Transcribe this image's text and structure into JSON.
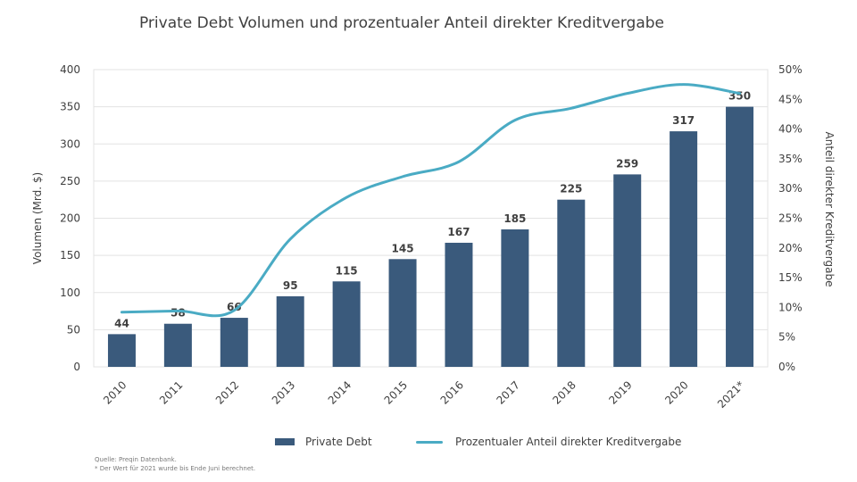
{
  "chart_data": {
    "type": "bar",
    "title": "Private Debt Volumen und prozentualer Anteil direkter Kreditvergabe",
    "categories": [
      "2010",
      "2011",
      "2012",
      "2013",
      "2014",
      "2015",
      "2016",
      "2017",
      "2018",
      "2019",
      "2020",
      "2021*"
    ],
    "series": [
      {
        "name": "Private Debt",
        "type": "bar",
        "axis": "left",
        "color": "#3a5a7c",
        "values": [
          44,
          58,
          66,
          95,
          115,
          145,
          167,
          185,
          225,
          259,
          317,
          350
        ],
        "labels": [
          "44",
          "58",
          "66",
          "95",
          "115",
          "145",
          "167",
          "185",
          "225",
          "259",
          "317",
          "350"
        ]
      },
      {
        "name": "Prozentualer Anteil direkter Kreditvergabe",
        "type": "line",
        "axis": "right",
        "color": "#4aabc4",
        "values": [
          9.2,
          9.4,
          9.5,
          21.5,
          28.5,
          32.0,
          34.5,
          41.5,
          43.5,
          46.0,
          47.5,
          46.0
        ]
      }
    ],
    "ylabel": "Volumen (Mrd. $)",
    "ylabel_right": "Anteil direkter Kreditvergabe",
    "ylim": [
      0,
      400
    ],
    "ylim_right": [
      0,
      50
    ],
    "yticks": [
      "0",
      "50",
      "100",
      "150",
      "200",
      "250",
      "300",
      "350",
      "400"
    ],
    "yticks_right": [
      "0%",
      "5%",
      "10%",
      "15%",
      "20%",
      "25%",
      "30%",
      "35%",
      "40%",
      "45%",
      "50%"
    ],
    "grid": true,
    "legend_position": "bottom"
  },
  "notes": [
    "Quelle: Preqin Datenbank.",
    "* Der Wert für 2021 wurde bis Ende Juni berechnet."
  ]
}
